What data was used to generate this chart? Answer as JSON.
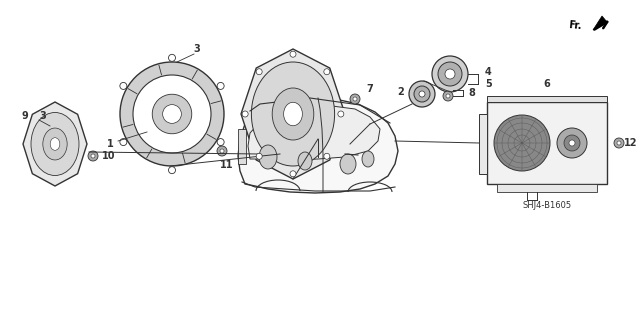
{
  "background_color": "#ffffff",
  "line_color": "#333333",
  "part_number": "SHJ4-B1605",
  "figsize": [
    6.4,
    3.19
  ],
  "dpi": 100,
  "xlim": [
    0,
    640
  ],
  "ylim": [
    0,
    319
  ]
}
